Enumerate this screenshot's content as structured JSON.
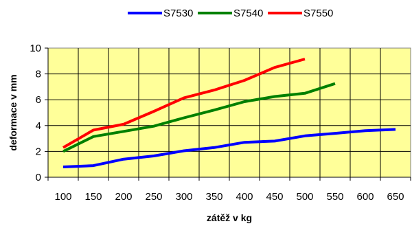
{
  "chart_data": {
    "type": "line",
    "title": "",
    "xlabel": "zátěž v kg",
    "ylabel": "deformace v mm",
    "x": [
      100,
      150,
      200,
      250,
      300,
      350,
      400,
      450,
      500,
      550,
      600,
      650
    ],
    "x_tick_labels": [
      "100",
      "150",
      "200",
      "250",
      "300",
      "350",
      "400",
      "450",
      "500",
      "550",
      "600",
      "650"
    ],
    "y_tick_labels": [
      "0",
      "2",
      "4",
      "6",
      "8",
      "10"
    ],
    "ylim": [
      0,
      10
    ],
    "grid": true,
    "legend_position": "top",
    "plot_background": "#FFFF99",
    "series": [
      {
        "name": "S7530",
        "color": "#0000FF",
        "values": [
          0.8,
          0.9,
          1.4,
          1.65,
          2.05,
          2.3,
          2.7,
          2.8,
          3.2,
          3.4,
          3.6,
          3.7
        ]
      },
      {
        "name": "S7540",
        "color": "#008000",
        "values": [
          2.0,
          3.15,
          3.55,
          3.95,
          4.6,
          5.2,
          5.85,
          6.25,
          6.5,
          7.25,
          null,
          null
        ]
      },
      {
        "name": "S7550",
        "color": "#FF0000",
        "values": [
          2.3,
          3.65,
          4.1,
          5.1,
          6.15,
          6.75,
          7.5,
          8.5,
          9.15,
          null,
          null,
          null
        ]
      }
    ]
  }
}
